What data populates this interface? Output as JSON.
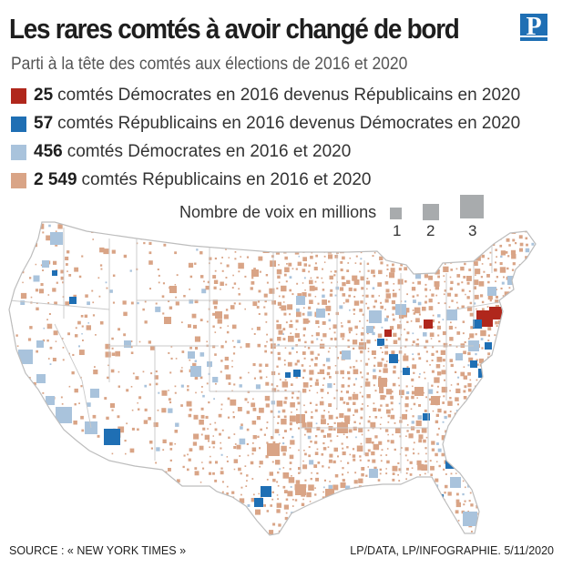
{
  "title": "Les rares comtés à avoir changé de bord",
  "logo_letter": "P",
  "subtitle": "Parti à la tête des comtés aux élections de 2016 et 2020",
  "legend": [
    {
      "count": "25",
      "label": "comtés Démocrates en 2016 devenus Républicains en 2020",
      "color": "#b0271c"
    },
    {
      "count": "57",
      "label": "comtés Républicains en 2016 devenus Démocrates en 2020",
      "color": "#1f6fb4"
    },
    {
      "count": "456",
      "label": "comtés Démocrates en 2016 et 2020",
      "color": "#a9c3dc"
    },
    {
      "count": "2 549",
      "label": "comtés Républicains en 2016 et 2020",
      "color": "#d9a486"
    }
  ],
  "size_key": {
    "caption": "Nombre de voix en millions",
    "values": [
      "1",
      "2",
      "3"
    ],
    "color": "#a8abad"
  },
  "footer": {
    "source": "SOURCE : « NEW YORK TIMES »",
    "credit": "LP/DATA, LP/INFOGRAPHIE.  5/11/2020"
  },
  "map": {
    "outline_color": "#bdbdbd",
    "state_line_color": "#c9c9c9"
  }
}
